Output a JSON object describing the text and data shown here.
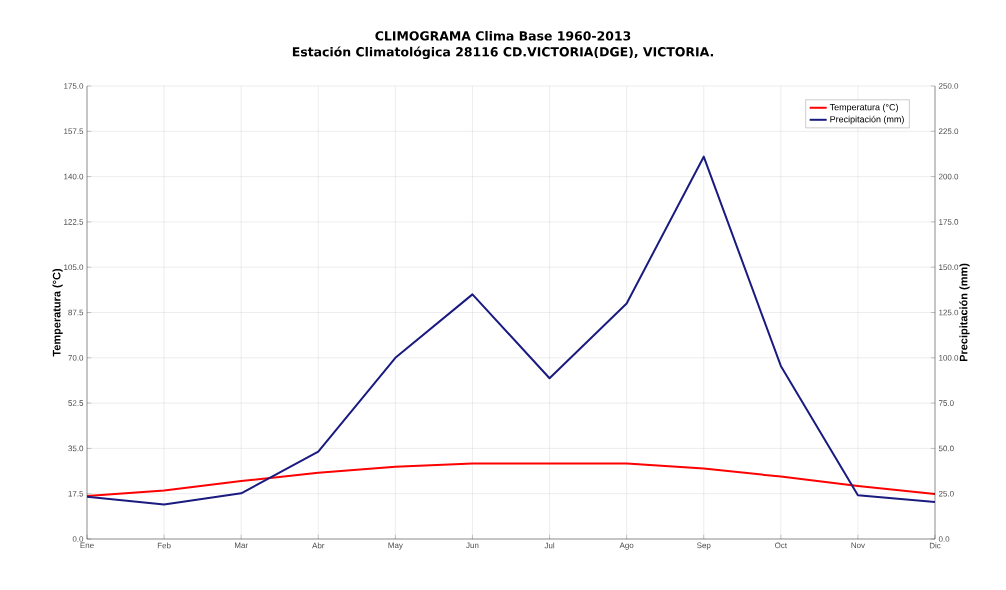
{
  "chart_data": {
    "type": "line",
    "title": "CLIMOGRAMA Clima Base 1960-2013",
    "subtitle": "Estación Climatológica 28116 CD.VICTORIA(DGE),  VICTORIA.",
    "xlabel": null,
    "ylabel": "Temperatura (°C)",
    "y2label": "Precipitación (mm)",
    "categories": [
      "Ene",
      "Feb",
      "Mar",
      "Abr",
      "May",
      "Jun",
      "Jul",
      "Ago",
      "Sep",
      "Oct",
      "Nov",
      "Dic"
    ],
    "series": [
      {
        "name": "Temperatura (°C)",
        "color": "#ff0000",
        "values": [
          16.6,
          18.7,
          22.4,
          25.6,
          27.9,
          29.2,
          29.2,
          29.2,
          27.2,
          24.1,
          20.5,
          17.4
        ]
      },
      {
        "name": "Precipitación (mm)",
        "color": "#1a1a80",
        "axis": "y2",
        "values": [
          23.3,
          19.1,
          25.2,
          48.2,
          100,
          135,
          88.7,
          130,
          211,
          95.5,
          24.1,
          20.4
        ]
      }
    ],
    "ylim": [
      0,
      175
    ],
    "yticks": [
      {
        "value": 0,
        "label": "0.0"
      },
      {
        "value": 17.5,
        "label": "17.5"
      },
      {
        "value": 35,
        "label": "35.0"
      },
      {
        "value": 52.5,
        "label": "52.5"
      },
      {
        "value": 70,
        "label": "70.0"
      },
      {
        "value": 87.5,
        "label": "87.5"
      },
      {
        "value": 105,
        "label": "105.0"
      },
      {
        "value": 122.5,
        "label": "122.5"
      },
      {
        "value": 140,
        "label": "140.0"
      },
      {
        "value": 157.5,
        "label": "157.5"
      },
      {
        "value": 175,
        "label": "175.0"
      }
    ],
    "y2lim": [
      0,
      250
    ],
    "y2ticks": [
      {
        "value": 0,
        "label": "0.0"
      },
      {
        "value": 25,
        "label": "25.0"
      },
      {
        "value": 50,
        "label": "50.0"
      },
      {
        "value": 75,
        "label": "75.0"
      },
      {
        "value": 100,
        "label": "100.0"
      },
      {
        "value": 125,
        "label": "125.0"
      },
      {
        "value": 150,
        "label": "150.0"
      },
      {
        "value": 175,
        "label": "175.0"
      },
      {
        "value": 200,
        "label": "200.0"
      },
      {
        "value": 225,
        "label": "225.0"
      },
      {
        "value": 250,
        "label": "250.0"
      }
    ],
    "grid": true,
    "legend": "top right",
    "marker": "none",
    "line_style": "solid"
  }
}
